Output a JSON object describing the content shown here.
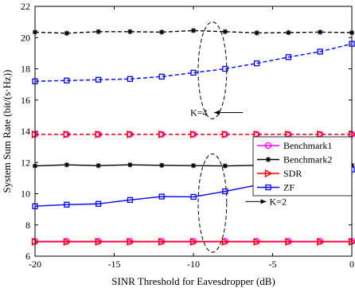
{
  "chart_data": {
    "type": "line",
    "xlabel": "SINR Threshold for Eavesdropper (dB)",
    "ylabel": "System Sum Rate (bit/(s·Hz))",
    "xlim": [
      -20,
      0
    ],
    "ylim": [
      6,
      22
    ],
    "xticks": [
      -20,
      -15,
      -10,
      -5,
      0
    ],
    "yticks": [
      6,
      8,
      10,
      12,
      14,
      16,
      18,
      20,
      22
    ],
    "grid": false,
    "legend_position": "right-middle",
    "x": [
      -20,
      -18,
      -16,
      -14,
      -12,
      -10,
      -8,
      -6,
      -4,
      -2,
      0
    ],
    "series": [
      {
        "name": "Benchmark1",
        "color": "#ff00ff",
        "marker": "circle",
        "group": "K=4",
        "dashed": true,
        "values": [
          13.8,
          13.8,
          13.8,
          13.8,
          13.8,
          13.8,
          13.8,
          13.8,
          13.8,
          13.8,
          13.8
        ]
      },
      {
        "name": "Benchmark2",
        "color": "#000000",
        "marker": "star",
        "group": "K=4",
        "dashed": true,
        "values": [
          20.35,
          20.28,
          20.38,
          20.38,
          20.35,
          20.45,
          20.38,
          20.3,
          20.32,
          20.35,
          20.32
        ]
      },
      {
        "name": "SDR",
        "color": "#ff0000",
        "marker": "triangle-right",
        "group": "K=4",
        "dashed": true,
        "values": [
          13.8,
          13.8,
          13.8,
          13.8,
          13.8,
          13.8,
          13.8,
          13.8,
          13.8,
          13.8,
          13.8
        ]
      },
      {
        "name": "ZF",
        "color": "#0000ff",
        "marker": "square",
        "group": "K=4",
        "dashed": true,
        "values": [
          17.2,
          17.25,
          17.3,
          17.35,
          17.5,
          17.75,
          18.0,
          18.35,
          18.75,
          19.1,
          19.6
        ]
      },
      {
        "name": "Benchmark1",
        "color": "#ff00ff",
        "marker": "circle",
        "group": "K=2",
        "dashed": false,
        "values": [
          6.95,
          6.95,
          6.95,
          6.95,
          6.95,
          6.95,
          6.95,
          6.95,
          6.95,
          6.95,
          6.95
        ]
      },
      {
        "name": "Benchmark2",
        "color": "#000000",
        "marker": "star",
        "group": "K=2",
        "dashed": false,
        "values": [
          11.78,
          11.85,
          11.8,
          11.85,
          11.82,
          11.8,
          11.78,
          11.82,
          11.8,
          11.85,
          11.82
        ]
      },
      {
        "name": "SDR",
        "color": "#ff0000",
        "marker": "triangle-right",
        "group": "K=2",
        "dashed": false,
        "values": [
          6.92,
          6.92,
          6.92,
          6.92,
          6.92,
          6.92,
          6.92,
          6.92,
          6.92,
          6.92,
          6.92
        ]
      },
      {
        "name": "ZF",
        "color": "#0000ff",
        "marker": "square",
        "group": "K=2",
        "dashed": false,
        "values": [
          9.2,
          9.3,
          9.35,
          9.6,
          9.82,
          9.8,
          10.15,
          10.55,
          10.7,
          11.0,
          11.55
        ]
      }
    ],
    "legend": [
      "Benchmark1",
      "Benchmark2",
      "SDR",
      "ZF"
    ],
    "annotations": [
      {
        "name": "k4",
        "text": "K=4",
        "x": -10.2,
        "y": 15.2,
        "ellipse_center": [
          -8.8,
          17.9
        ],
        "ellipse_rx": 0.9,
        "ellipse_ry": 3.1
      },
      {
        "name": "k2",
        "text": "K=2",
        "x": -5.2,
        "y": 9.5,
        "ellipse_center": [
          -8.8,
          9.4
        ],
        "ellipse_rx": 0.9,
        "ellipse_ry": 3.15
      }
    ]
  }
}
